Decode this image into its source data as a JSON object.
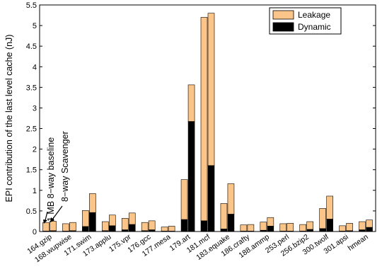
{
  "chart_data": {
    "type": "bar",
    "stacked": true,
    "grouped": true,
    "title": "",
    "xlabel": "",
    "ylabel": "EPI contribution of the last level cache (nJ)",
    "ylim": [
      0,
      5.5
    ],
    "yticks": [
      "0",
      "0.5",
      "1",
      "1.5",
      "2",
      "2.5",
      "3",
      "3.5",
      "4",
      "4.5",
      "5",
      "5.5"
    ],
    "grid": false,
    "legend_position": "top-right",
    "stack_series": [
      "Leakage",
      "Dynamic"
    ],
    "colors": {
      "Leakage": "#fbc58a",
      "Dynamic": "#000000"
    },
    "group_members": [
      "1 MB 8-way baseline",
      "8-way Scavenger"
    ],
    "categories": [
      "164.gzip",
      "168.wupwise",
      "171.swim",
      "173.applu",
      "175.vpr",
      "176.gcc",
      "177.mesa",
      "179.art",
      "181.mcf",
      "183.equake",
      "186.crafty",
      "188.ammp",
      "253.perl",
      "256.bzip2",
      "300.twolf",
      "301.apsi",
      "hmean"
    ],
    "series": [
      {
        "name": "1 MB 8-way baseline",
        "dynamic": [
          0.01,
          0.01,
          0.12,
          0.02,
          0.04,
          0.02,
          0.01,
          0.29,
          0.26,
          0.06,
          0.01,
          0.03,
          0.01,
          0.01,
          0.07,
          0.01,
          0.04
        ],
        "total": [
          0.22,
          0.19,
          0.51,
          0.24,
          0.32,
          0.22,
          0.11,
          1.26,
          5.2,
          0.68,
          0.16,
          0.23,
          0.19,
          0.17,
          0.56,
          0.14,
          0.24
        ]
      },
      {
        "name": "8-way Scavenger",
        "dynamic": [
          0.02,
          0.02,
          0.46,
          0.14,
          0.17,
          0.04,
          0.01,
          2.67,
          1.6,
          0.42,
          0.01,
          0.13,
          0.01,
          0.05,
          0.3,
          0.02,
          0.1
        ],
        "total": [
          0.25,
          0.22,
          0.92,
          0.4,
          0.45,
          0.26,
          0.13,
          3.56,
          5.3,
          1.16,
          0.17,
          0.34,
          0.2,
          0.24,
          0.86,
          0.2,
          0.28
        ]
      }
    ],
    "annotations": [
      "1 MB 8−way baseline",
      "8−way Scavenger"
    ]
  }
}
